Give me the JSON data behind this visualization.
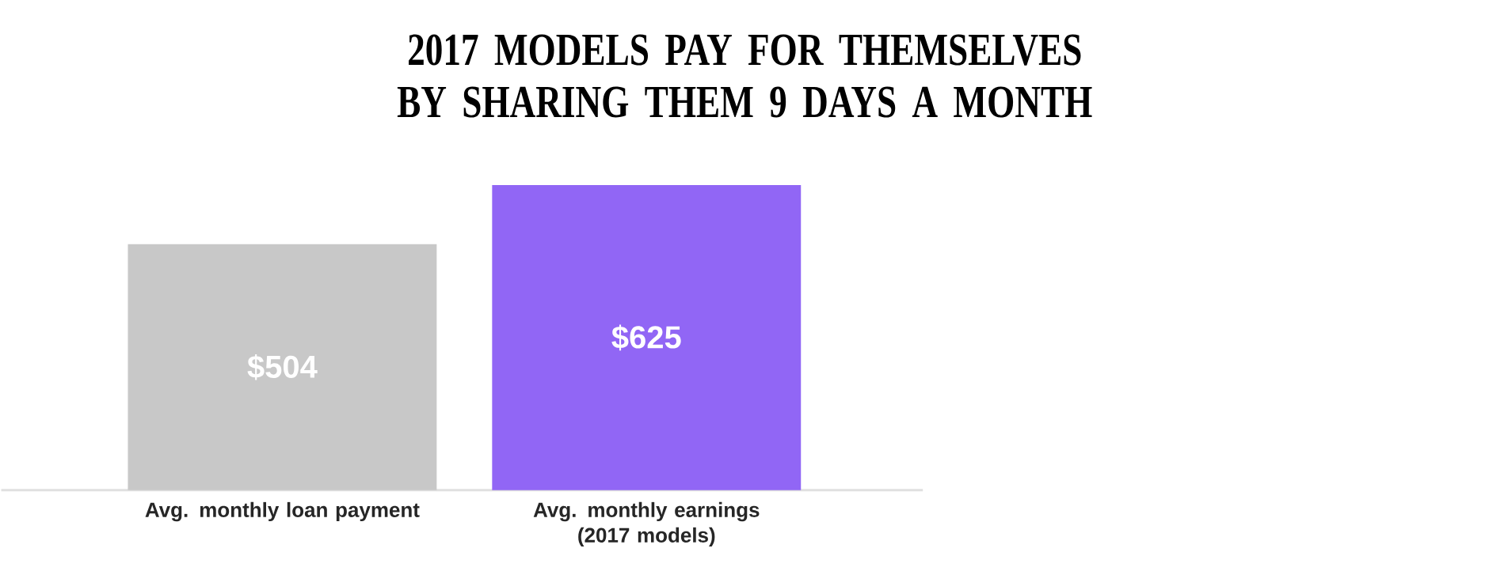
{
  "chart_data": {
    "type": "bar",
    "title": "2017 MODELS PAY FOR THEMSELVES BY SHARING THEM 9 DAYS A MONTH",
    "categories": [
      "Avg. monthly loan payment",
      "Avg. monthly earnings (2017 models)"
    ],
    "values": [
      504,
      625
    ],
    "colors": [
      "#c8c8c8",
      "#9166f5"
    ],
    "value_labels": [
      "$504",
      "$625"
    ],
    "tick_labels": "x"
  }
}
